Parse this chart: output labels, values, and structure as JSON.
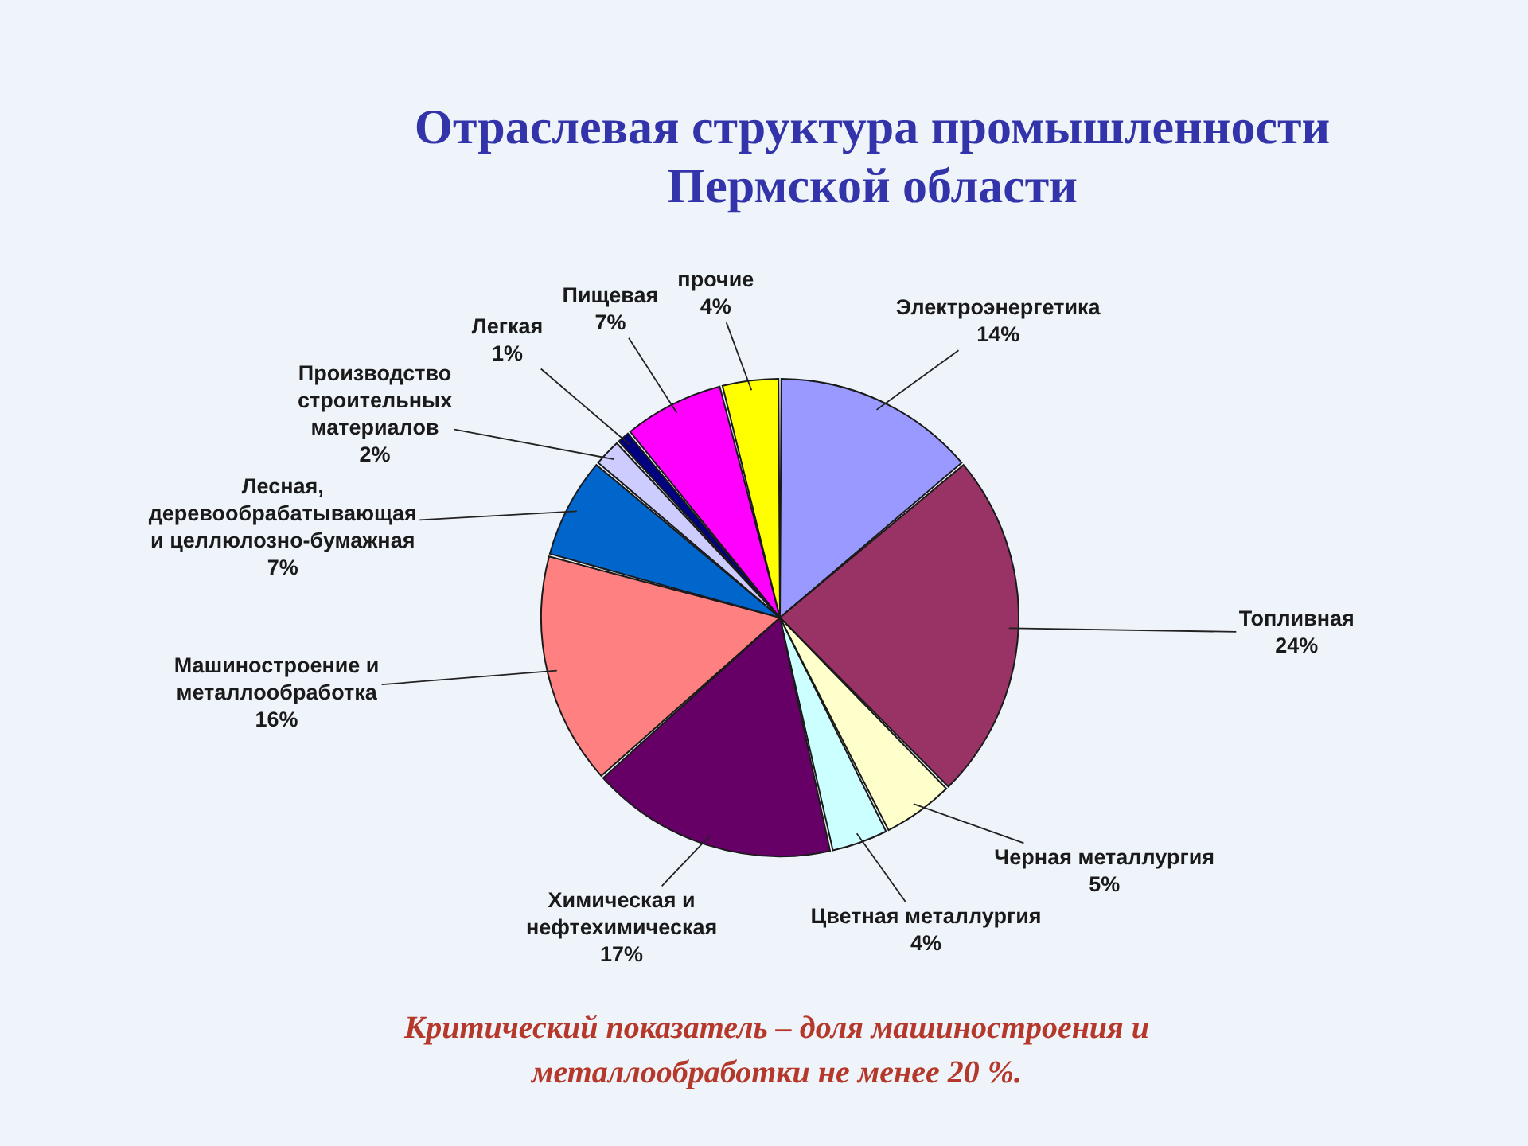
{
  "chart_data": {
    "type": "pie",
    "title": "Отраслевая структура промышленности\nПермской области",
    "categories": [
      "Электроэнергетика",
      "Топливная",
      "Черная металлургия",
      "Цветная металлургия",
      "Химическая и\nнефтехимическая",
      "Машиностроение и\nметаллообработка",
      "Лесная,\nдеревообрабатывающая\nи целлюлозно-бумажная",
      "Производство\nстроительных\nматериалов",
      "Легкая",
      "Пищевая",
      "прочие"
    ],
    "values": [
      14,
      24,
      5,
      4,
      17,
      16,
      7,
      2,
      1,
      7,
      4
    ],
    "value_labels": [
      "14%",
      "24%",
      "5%",
      "4%",
      "17%",
      "16%",
      "7%",
      "2%",
      "1%",
      "7%",
      "4%"
    ],
    "colors": [
      "#9999ff",
      "#993366",
      "#ffffcc",
      "#ccffff",
      "#660066",
      "#ff8080",
      "#0066cc",
      "#ccccff",
      "#000080",
      "#ff00ff",
      "#ffff00"
    ],
    "annotations": [
      "Критический показатель – доля машиностроения и\nметаллообработки не менее 20 %."
    ]
  }
}
